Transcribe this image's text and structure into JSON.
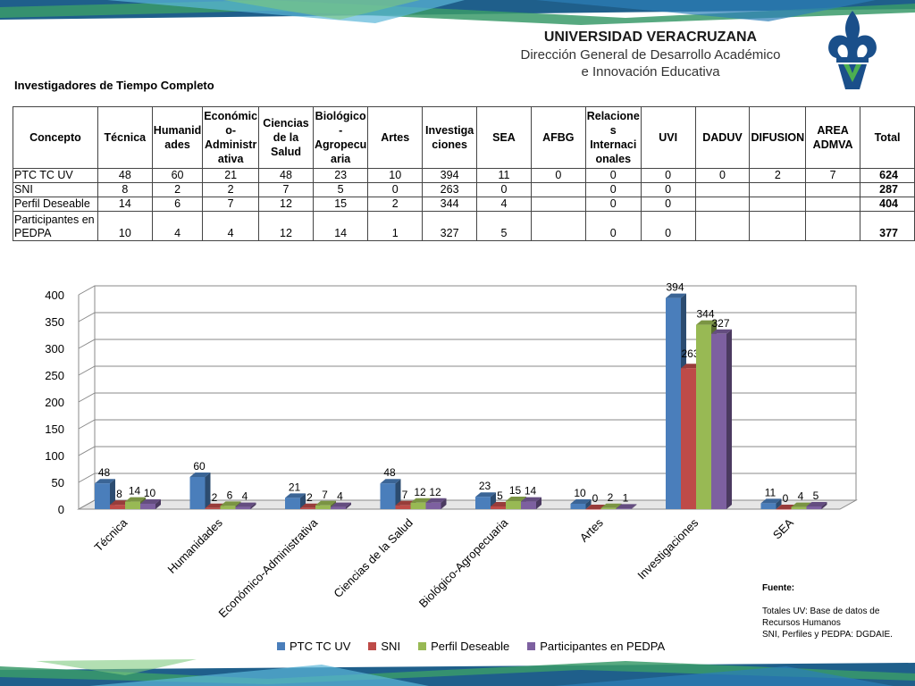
{
  "header": {
    "university": "UNIVERSIDAD VERACRUZANA",
    "department_line1": "Dirección General de Desarrollo Académico",
    "department_line2": "e Innovación Educativa"
  },
  "section_title": "Investigadores de Tiempo Completo",
  "table": {
    "headers": [
      "Concepto",
      "Técnica",
      "Humanid ades",
      "Económic o- Administr ativa",
      "Ciencias de la Salud",
      "Biológico - Agropecu aria",
      "Artes",
      "Investiga ciones",
      "SEA",
      "AFBG",
      "Relacione s Internaci onales",
      "UVI",
      "DADUV",
      "DIFUSION",
      "AREA ADMVA",
      "Total"
    ],
    "rows": [
      [
        "PTC TC UV",
        "48",
        "60",
        "21",
        "48",
        "23",
        "10",
        "394",
        "11",
        "0",
        "0",
        "0",
        "0",
        "2",
        "7",
        "624"
      ],
      [
        "SNI",
        "8",
        "2",
        "2",
        "7",
        "5",
        "0",
        "263",
        "0",
        "",
        "0",
        "0",
        "",
        "",
        "",
        "287"
      ],
      [
        "Perfil Deseable",
        "14",
        "6",
        "7",
        "12",
        "15",
        "2",
        "344",
        "4",
        "",
        "0",
        "0",
        "",
        "",
        "",
        "404"
      ],
      [
        "Participantes en PEDPA",
        "10",
        "4",
        "4",
        "12",
        "14",
        "1",
        "327",
        "5",
        "",
        "0",
        "0",
        "",
        "",
        "",
        "377"
      ]
    ]
  },
  "chart_data": {
    "type": "bar",
    "categories": [
      "Técnica",
      "Humanidades",
      "Económico-Administrativa",
      "Ciencias de la Salud",
      "Biológico-Agropecuaria",
      "Artes",
      "Investigaciones",
      "SEA"
    ],
    "series": [
      {
        "name": "PTC TC UV",
        "color": "#4a7ebb",
        "values": [
          48,
          60,
          21,
          48,
          23,
          10,
          394,
          11
        ]
      },
      {
        "name": "SNI",
        "color": "#be4b48",
        "values": [
          8,
          2,
          2,
          7,
          5,
          0,
          263,
          0
        ]
      },
      {
        "name": "Perfil Deseable",
        "color": "#98b954",
        "values": [
          14,
          6,
          7,
          12,
          15,
          2,
          344,
          4
        ]
      },
      {
        "name": "Participantes en PEDPA",
        "color": "#7d60a0",
        "values": [
          10,
          4,
          4,
          12,
          14,
          1,
          327,
          5
        ]
      }
    ],
    "ylim": [
      0,
      400
    ],
    "yticks": [
      0,
      50,
      100,
      150,
      200,
      250,
      300,
      350,
      400
    ],
    "grid": true,
    "legend": "bottom",
    "data_labels": true
  },
  "source_note": {
    "title": "Fuente:",
    "line1": "Totales UV: Base de datos de Recursos Humanos",
    "line2": "SNI, Perfiles y PEDPA: DGDAIE."
  }
}
